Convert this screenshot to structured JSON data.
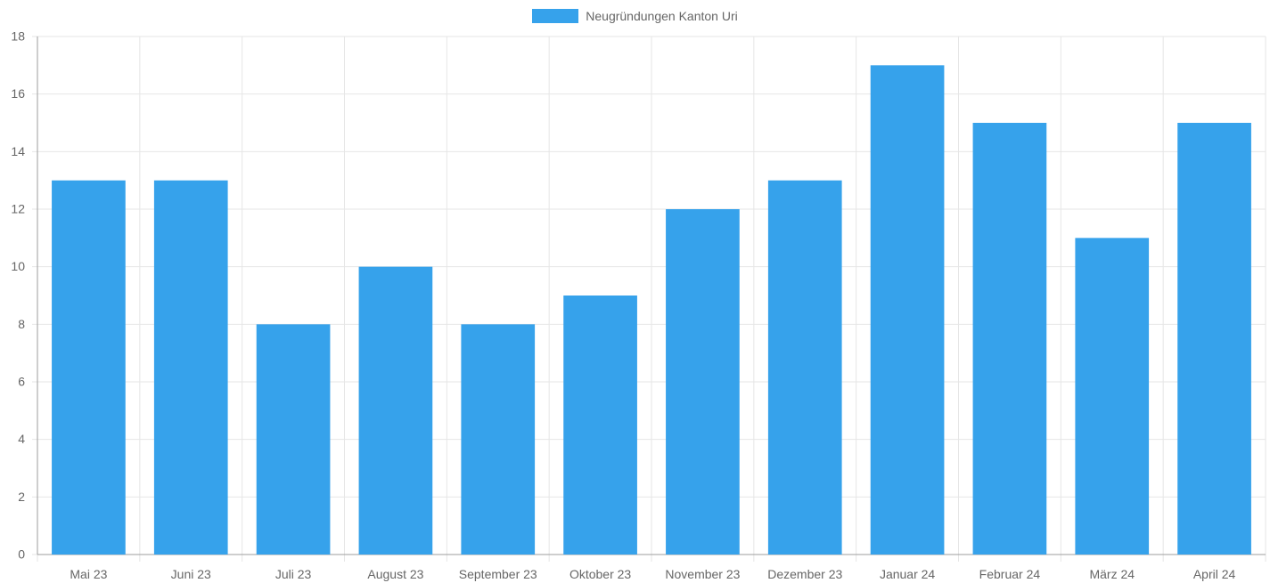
{
  "chart_data": {
    "type": "bar",
    "categories": [
      "Mai 23",
      "Juni 23",
      "Juli 23",
      "August 23",
      "September 23",
      "Oktober 23",
      "November 23",
      "Dezember 23",
      "Januar 24",
      "Februar 24",
      "März 24",
      "April 24"
    ],
    "series": [
      {
        "name": "Neugründungen Kanton Uri",
        "values": [
          13,
          13,
          8,
          10,
          8,
          9,
          12,
          13,
          17,
          15,
          11,
          15
        ]
      }
    ],
    "ylim": [
      0,
      18
    ],
    "yticks": [
      0,
      2,
      4,
      6,
      8,
      10,
      12,
      14,
      16,
      18
    ],
    "grid": true,
    "legend_position": "top-center"
  },
  "colors": {
    "bar": "#36a2eb",
    "grid": "#e6e6e6",
    "axis": "#9e9e9e",
    "text": "#666666"
  }
}
